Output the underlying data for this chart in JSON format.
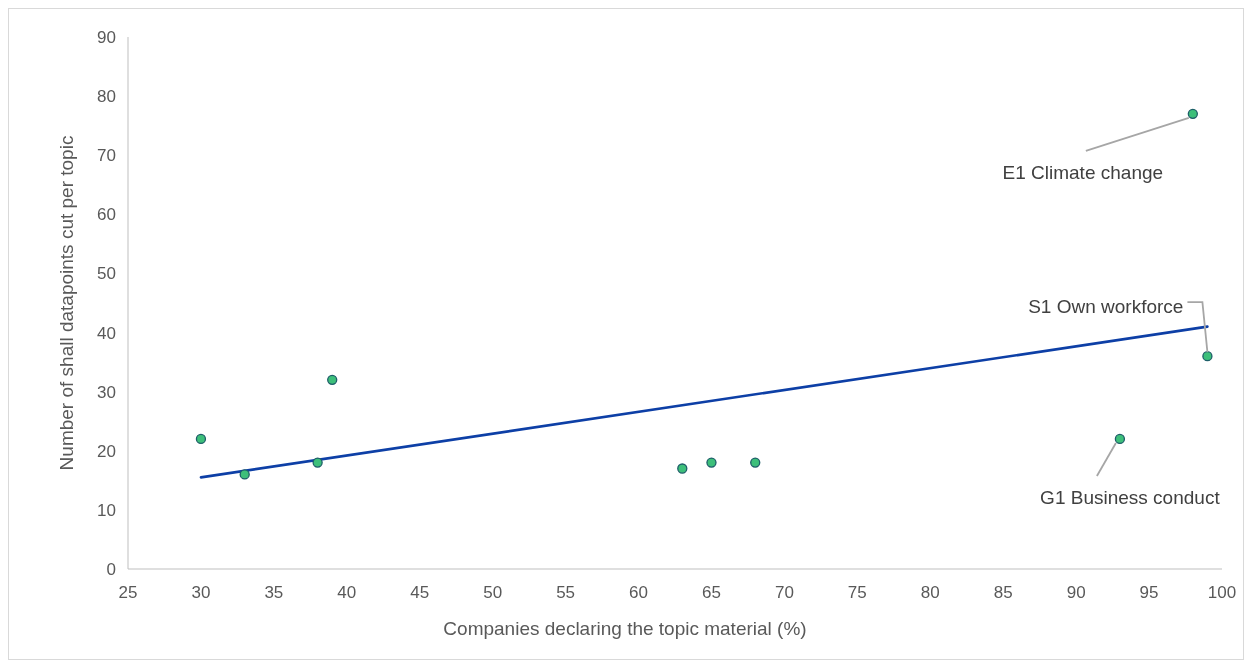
{
  "chart_data": {
    "type": "scatter",
    "xlabel": "Companies declaring the topic material (%)",
    "ylabel": "Number  of shall datapoints cut per topic",
    "xlim": [
      25,
      100
    ],
    "xticks": [
      25,
      30,
      35,
      40,
      45,
      50,
      55,
      60,
      65,
      70,
      75,
      80,
      85,
      90,
      95,
      100
    ],
    "ylim": [
      0,
      90
    ],
    "yticks": [
      0,
      10,
      20,
      30,
      40,
      50,
      60,
      70,
      80,
      90
    ],
    "grid": false,
    "series": [
      {
        "marker": "circle",
        "color": "#3dbf7a",
        "x": [
          30,
          33,
          38,
          39,
          63,
          65,
          68,
          93,
          98,
          99
        ],
        "values": [
          22,
          16,
          18,
          32,
          17,
          18,
          18,
          22,
          77,
          36
        ]
      },
      {
        "type": "line",
        "color": "#0d3fa6",
        "line_style": "solid",
        "x": [
          30,
          99
        ],
        "values": [
          15.5,
          41
        ]
      }
    ],
    "annotations": [
      {
        "text": "E1 Climate change",
        "x": 98,
        "y": 77
      },
      {
        "text": "S1 Own workforce",
        "x": 99,
        "y": 36
      },
      {
        "text": "G1 Business conduct",
        "x": 93,
        "y": 22
      }
    ]
  }
}
